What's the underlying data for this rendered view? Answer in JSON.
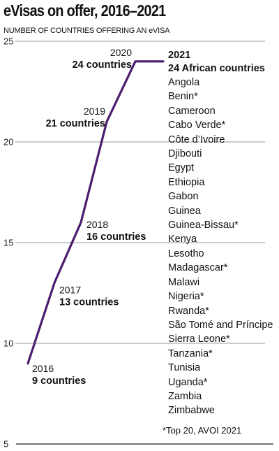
{
  "title": "eVisas on offer, 2016–2021",
  "subtitle": "NUMBER OF COUNTRIES OFFERING AN eVISA",
  "colors": {
    "line": "#4b1d6e",
    "grid": "#999999",
    "text": "#111111"
  },
  "chart_data": {
    "type": "line",
    "ylabel": "NUMBER OF COUNTRIES OFFERING AN eVISA",
    "ylim": [
      5,
      25
    ],
    "yticks": [
      5,
      10,
      15,
      20,
      25
    ],
    "grid": true,
    "x": [
      2016,
      2017,
      2018,
      2019,
      2020,
      2021
    ],
    "series": [
      {
        "values": [
          9,
          13,
          16,
          21,
          24,
          24
        ]
      }
    ],
    "annotations": [
      {
        "year": "2016",
        "label": "9 countries"
      },
      {
        "year": "2017",
        "label": "13 countries"
      },
      {
        "year": "2018",
        "label": "16 countries"
      },
      {
        "year": "2019",
        "label": "21 countries"
      },
      {
        "year": "2020",
        "label": "24 countries"
      }
    ]
  },
  "list": {
    "year": "2021",
    "heading": "24 African countries",
    "countries": [
      "Angola",
      "Benin*",
      "Cameroon",
      "Cabo Verde*",
      "Côte d’Ivoire",
      "Djibouti",
      "Egypt",
      "Ethiopia",
      "Gabon",
      "Guinea",
      "Guinea-Bissau*",
      "Kenya",
      "Lesotho",
      "Madagascar*",
      "Malawi",
      "Nigeria*",
      "Rwanda*",
      "São Tomé and Príncipe",
      "Sierra Leone*",
      "Tanzania*",
      "Tunisia",
      "Uganda*",
      "Zambia",
      "Zimbabwe"
    ]
  },
  "footnote": "*Top 20, AVOI 2021"
}
